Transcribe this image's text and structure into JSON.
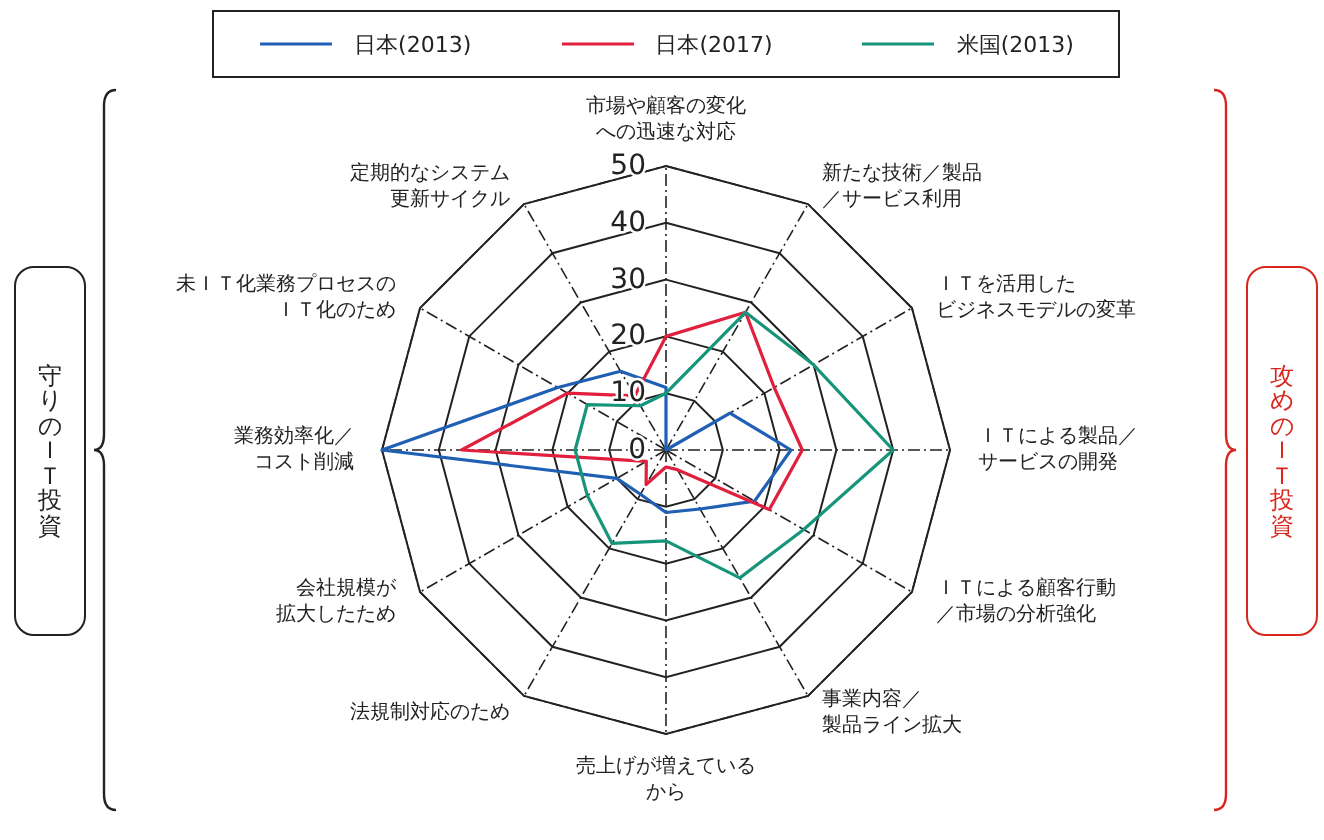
{
  "chart_data": {
    "type": "radar",
    "categories": [
      "市場や顧客の変化への迅速な対応",
      "新たな技術／製品／サービス利用",
      "ＩＴを活用したビジネスモデルの変革",
      "ＩＴによる製品／サービスの開発",
      "ＩＴによる顧客行動／市場の分析強化",
      "事業内容／製品ライン拡大",
      "売上げが増えているから",
      "法規制対応のため",
      "会社規模が拡大したため",
      "業務効率化／コスト削減",
      "未ＩＴ化業務プロセスのＩＴ化のため",
      "定期的なシステム更新サイクル"
    ],
    "series": [
      {
        "name": "日本(2013)",
        "color": "#1f5fb4",
        "values": [
          11,
          0,
          13,
          22,
          18,
          12,
          11,
          9,
          10,
          50,
          22,
          16
        ]
      },
      {
        "name": "日本(2017)",
        "color": "#e0203c",
        "values": [
          20,
          28,
          22,
          24,
          21,
          4,
          3,
          7,
          4,
          36,
          20,
          11
        ]
      },
      {
        "name": "米国(2013)",
        "color": "#16957a",
        "values": [
          10,
          28,
          30,
          40,
          28,
          26,
          16,
          19,
          16,
          16,
          16,
          9
        ]
      }
    ],
    "ylim": [
      0,
      50
    ],
    "yticks": [
      0,
      10,
      20,
      30,
      40,
      50
    ],
    "grid": true,
    "legend": "top",
    "annotations": [
      "守りのＩＴ投資",
      "攻めのＩＴ投資"
    ]
  }
}
